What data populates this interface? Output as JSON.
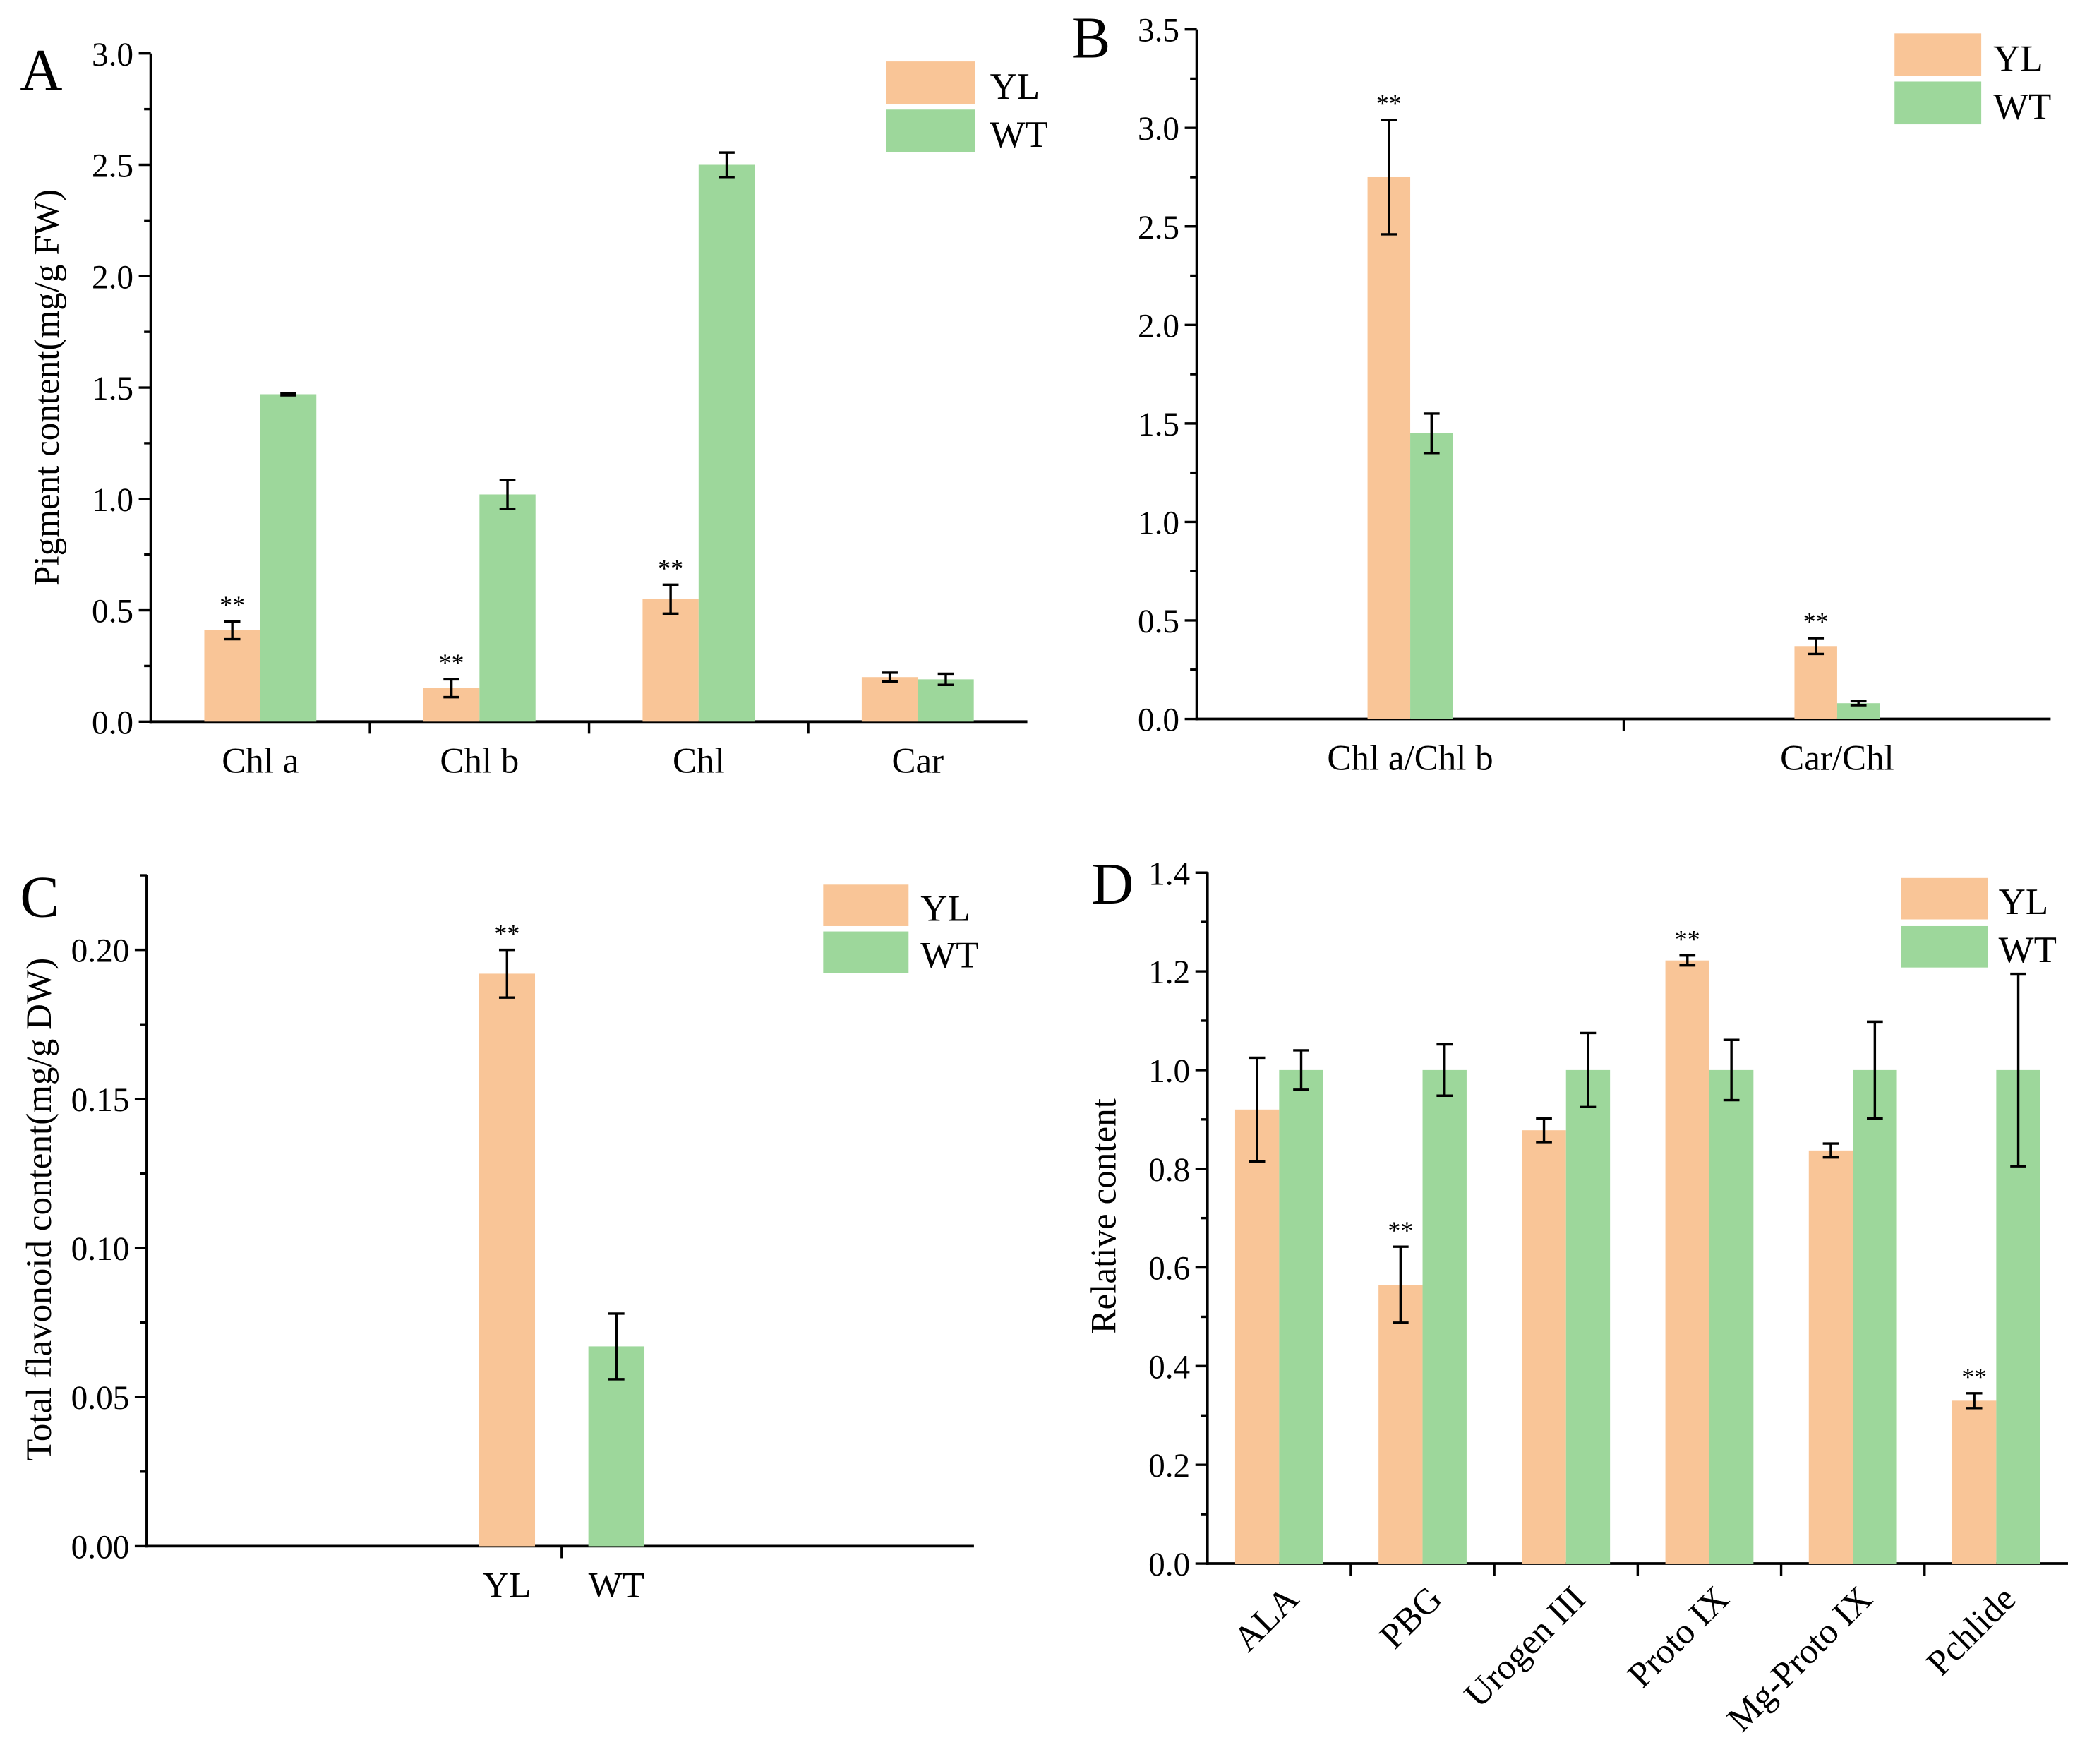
{
  "chart_data": [
    {
      "panel_label": "A",
      "type": "bar",
      "ylabel": "Pigment content(mg/g FW)",
      "categories": [
        "Chl a",
        "Chl b",
        "Chl",
        "Car"
      ],
      "ylim": [
        0,
        3.0
      ],
      "yticks": [
        0,
        0.5,
        1.0,
        1.5,
        2.0,
        2.5,
        3.0
      ],
      "ytick_labels": [
        "0.0",
        "0.5",
        "1.0",
        "1.5",
        "2.0",
        "2.5",
        "3.0"
      ],
      "legend_position": "top-right",
      "series": [
        {
          "name": "YL",
          "color": "#F9C597",
          "values": [
            0.41,
            0.15,
            0.55,
            0.2
          ],
          "errors": [
            0.04,
            0.04,
            0.065,
            0.02
          ],
          "significance": [
            "**",
            "**",
            "**",
            ""
          ]
        },
        {
          "name": "WT",
          "color": "#9DD79B",
          "values": [
            1.47,
            1.02,
            2.5,
            0.19
          ],
          "errors": [
            0.005,
            0.065,
            0.055,
            0.025
          ],
          "significance": [
            "",
            "",
            "",
            ""
          ]
        }
      ]
    },
    {
      "panel_label": "B",
      "type": "bar",
      "categories": [
        "Chl a/Chl b",
        "Car/Chl"
      ],
      "ylim": [
        0,
        3.5
      ],
      "yticks": [
        0,
        0.5,
        1.0,
        1.5,
        2.0,
        2.5,
        3.0,
        3.5
      ],
      "ytick_labels": [
        "0.0",
        "0.5",
        "1.0",
        "1.5",
        "2.0",
        "2.5",
        "3.0",
        "3.5"
      ],
      "legend_position": "top-right",
      "series": [
        {
          "name": "YL",
          "color": "#F9C597",
          "values": [
            2.75,
            0.37
          ],
          "errors": [
            0.29,
            0.04
          ],
          "significance": [
            "**",
            "**"
          ]
        },
        {
          "name": "WT",
          "color": "#9DD79B",
          "values": [
            1.45,
            0.08
          ],
          "errors": [
            0.1,
            0.01
          ],
          "significance": [
            "",
            ""
          ]
        }
      ]
    },
    {
      "panel_label": "C",
      "type": "bar",
      "ylabel": "Total flavonoid content(mg/g DW)",
      "categories": [
        "YL",
        "WT"
      ],
      "ylim": [
        0,
        0.225
      ],
      "yticks": [
        0,
        0.05,
        0.1,
        0.15,
        0.2
      ],
      "ytick_labels": [
        "0.00",
        "0.05",
        "0.10",
        "0.15",
        "0.20"
      ],
      "legend_position": "top-right",
      "series": [
        {
          "name": "YL",
          "color": "#F9C597",
          "values": [
            0.192,
            null
          ],
          "errors": [
            0.008,
            null
          ],
          "significance": [
            "**",
            ""
          ]
        },
        {
          "name": "WT",
          "color": "#9DD79B",
          "values": [
            null,
            0.067
          ],
          "errors": [
            null,
            0.011
          ],
          "significance": [
            "",
            ""
          ]
        }
      ]
    },
    {
      "panel_label": "D",
      "type": "bar",
      "ylabel": "Relative content",
      "categories": [
        "ALA",
        "PBG",
        "Urogen III",
        "Proto IX",
        "Mg-Proto IX",
        "Pchlide"
      ],
      "ylim": [
        0,
        1.4
      ],
      "yticks": [
        0,
        0.2,
        0.4,
        0.6,
        0.8,
        1.0,
        1.2,
        1.4
      ],
      "ytick_labels": [
        "0.0",
        "0.2",
        "0.4",
        "0.6",
        "0.8",
        "1.0",
        "1.2",
        "1.4"
      ],
      "legend_position": "top-right",
      "series": [
        {
          "name": "YL",
          "color": "#F9C597",
          "values": [
            0.92,
            0.565,
            0.878,
            1.222,
            0.837,
            0.33
          ],
          "errors": [
            0.105,
            0.077,
            0.024,
            0.01,
            0.014,
            0.015
          ],
          "significance": [
            "",
            "**",
            "",
            "**",
            "",
            "**"
          ]
        },
        {
          "name": "WT",
          "color": "#9DD79B",
          "values": [
            1.0,
            1.0,
            1.0,
            1.0,
            1.0,
            1.0
          ],
          "errors": [
            0.04,
            0.052,
            0.075,
            0.061,
            0.098,
            0.195
          ],
          "significance": [
            "",
            "",
            "",
            "",
            "",
            ""
          ]
        }
      ]
    }
  ]
}
